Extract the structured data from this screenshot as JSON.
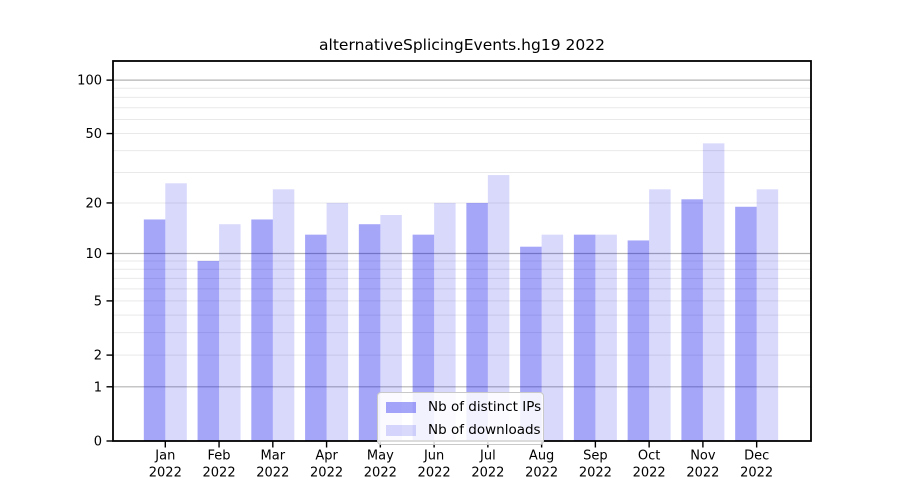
{
  "chart_data": {
    "type": "bar",
    "title": "alternativeSplicingEvents.hg19 2022",
    "categories": [
      "Jan",
      "Feb",
      "Mar",
      "Apr",
      "May",
      "Jun",
      "Jul",
      "Aug",
      "Sep",
      "Oct",
      "Nov",
      "Dec"
    ],
    "category_year": "2022",
    "series": [
      {
        "key": "ips",
        "name": "Nb of distinct IPs",
        "color": "rgba(0,0,238,0.35)",
        "values": [
          16,
          9,
          16,
          13,
          15,
          13,
          20,
          11,
          13,
          12,
          21,
          19
        ]
      },
      {
        "key": "downloads",
        "name": "Nb of downloads",
        "color": "rgba(0,0,238,0.15)",
        "values": [
          26,
          15,
          24,
          20,
          17,
          20,
          29,
          13,
          13,
          24,
          44,
          24
        ]
      }
    ],
    "y_axis": {
      "scale": "log1p",
      "ylim": [
        0,
        128
      ],
      "tick_labels": [
        0,
        1,
        2,
        5,
        10,
        20,
        50,
        100
      ],
      "major_gridlines": [
        1,
        10,
        100
      ],
      "minor_gridlines": [
        2,
        3,
        4,
        5,
        6,
        7,
        8,
        9,
        20,
        30,
        40,
        50,
        60,
        70,
        80,
        90
      ]
    },
    "xlabel": "",
    "ylabel": "",
    "grid": true,
    "legend_position": "lower center"
  },
  "colors": {
    "major_grid": "#b3b3b3",
    "minor_grid": "#e9e9e9",
    "axis": "#000000",
    "tick_text": "#000000",
    "background": "#ffffff"
  }
}
